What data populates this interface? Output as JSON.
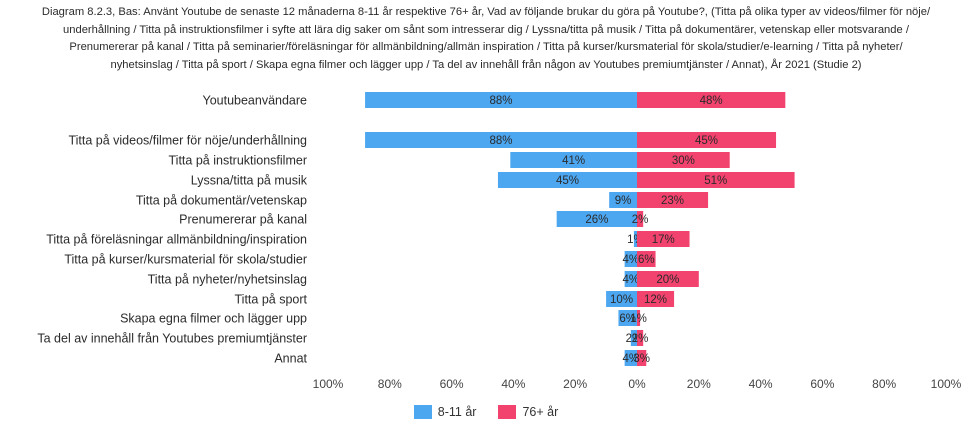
{
  "title_lines": [
    "Diagram 8.2.3, Bas: Använt Youtube de senaste 12 månaderna 8-11 år respektive 76+ år, Vad av följande brukar du göra på Youtube?, (Titta på olika typer av videos/filmer för nöje/",
    "underhållning / Titta på instruktionsfilmer i syfte att lära dig saker om sånt som intresserar dig / Lyssna/titta på musik / Titta på dokumentärer, vetenskap eller motsvarande /",
    "Prenumererar på kanal / Titta på seminarier/föreläsningar för allmänbildning/allmän inspiration / Titta på kurser/kursmaterial för skola/studier/e-learning / Titta på nyheter/",
    "nyhetsinslag / Titta på sport / Skapa egna filmer och lägger upp / Ta del av innehåll från någon av Youtubes premiumtjänster / Annat), År 2021 (Studie 2)"
  ],
  "chart_data": {
    "type": "bar",
    "orientation": "horizontal-diverging",
    "categories": [
      "Youtubeanvändare",
      "Titta på videos/filmer för nöje/underhållning",
      "Titta på instruktionsfilmer",
      "Lyssna/titta på musik",
      "Titta på dokumentär/vetenskap",
      "Prenumererar på kanal",
      "Titta på föreläsningar allmänbildning/inspiration",
      "Titta på kurser/kursmaterial för skola/studier",
      "Titta på nyheter/nyhetsinslag",
      "Titta på sport",
      "Skapa egna filmer och lägger upp",
      "Ta del av innehåll från Youtubes premiumtjänster",
      "Annat"
    ],
    "series": [
      {
        "name": "8-11 år",
        "color": "#4da6f0",
        "direction": "left",
        "values": [
          88,
          88,
          41,
          45,
          9,
          26,
          1,
          4,
          4,
          10,
          6,
          2,
          4
        ],
        "labels": [
          "88%",
          "88%",
          "41%",
          "45%",
          "9%",
          "26%",
          "1%",
          "4%",
          "4%",
          "10%",
          "6%",
          "2%",
          "4%"
        ]
      },
      {
        "name": "76+ år",
        "color": "#f2426e",
        "direction": "right",
        "values": [
          48,
          45,
          30,
          51,
          23,
          2,
          17,
          6,
          20,
          12,
          1,
          2,
          3
        ],
        "labels": [
          "48%",
          "45%",
          "30%",
          "51%",
          "23%",
          "2%",
          "17%",
          "6%",
          "20%",
          "12%",
          "1%",
          "2%",
          "3%"
        ]
      }
    ],
    "x_ticks": [
      "100%",
      "80%",
      "60%",
      "40%",
      "20%",
      "0%",
      "20%",
      "40%",
      "60%",
      "80%",
      "100%"
    ],
    "xlim": [
      -100,
      100
    ],
    "grid": false,
    "legend": "bottom-center"
  }
}
